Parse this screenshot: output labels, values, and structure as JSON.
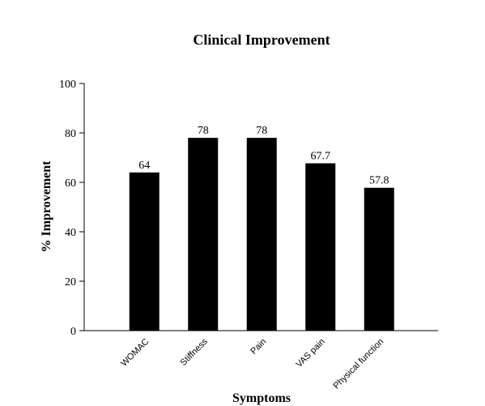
{
  "chart_data": {
    "type": "bar",
    "title": "Clinical Improvement",
    "x_label": "Symptoms",
    "y_label": "% Improvement",
    "categories": [
      "WOMAC",
      "Stiffness",
      "Pain",
      "VAS pain",
      "Physical function"
    ],
    "values": [
      64,
      78,
      78,
      67.7,
      57.8
    ],
    "color": "#000000",
    "ylim": [
      0,
      100
    ],
    "yticks": [
      0,
      20,
      40,
      60,
      80,
      100
    ]
  }
}
